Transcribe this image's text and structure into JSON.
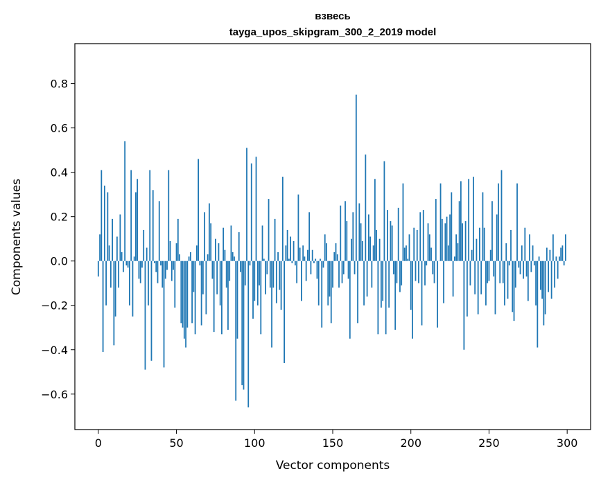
{
  "chart_data": {
    "type": "bar",
    "title": "взвесь",
    "subtitle": "tayga_upos_skipgram_300_2_2019 model",
    "xlabel": "Vector components",
    "ylabel": "Components values",
    "xlim": [
      -15,
      315
    ],
    "ylim": [
      -0.76,
      0.98
    ],
    "x_ticks": [
      0,
      50,
      100,
      150,
      200,
      250,
      300
    ],
    "y_ticks": [
      -0.6,
      -0.4,
      -0.2,
      0.0,
      0.2,
      0.4,
      0.6,
      0.8
    ],
    "y_tick_labels": [
      "−0.6",
      "−0.4",
      "−0.2",
      "0.0",
      "0.2",
      "0.4",
      "0.6",
      "0.8"
    ],
    "x_tick_labels": [
      "0",
      "50",
      "100",
      "150",
      "200",
      "250",
      "300"
    ],
    "grid": false,
    "bar_color": "#1f77b4",
    "values": [
      -0.07,
      0.12,
      0.41,
      -0.41,
      0.34,
      -0.2,
      0.31,
      0.07,
      -0.12,
      0.19,
      -0.38,
      -0.25,
      0.11,
      -0.12,
      0.21,
      0.04,
      -0.05,
      0.54,
      -0.02,
      -0.03,
      -0.2,
      0.41,
      -0.25,
      0.02,
      0.31,
      0.37,
      -0.08,
      -0.1,
      -0.03,
      0.14,
      -0.49,
      0.06,
      -0.2,
      0.41,
      -0.45,
      0.32,
      -0.01,
      -0.05,
      -0.1,
      0.27,
      -0.02,
      -0.12,
      -0.48,
      -0.08,
      -0.04,
      0.41,
      0.09,
      -0.09,
      -0.04,
      -0.21,
      0.08,
      0.19,
      0.03,
      -0.28,
      -0.3,
      -0.35,
      -0.39,
      -0.3,
      0.02,
      0.04,
      -0.28,
      -0.14,
      -0.33,
      0.07,
      0.46,
      -0.02,
      -0.29,
      -0.15,
      0.22,
      -0.24,
      0.03,
      0.26,
      0.17,
      -0.08,
      -0.32,
      0.1,
      -0.15,
      0.08,
      -0.2,
      -0.33,
      0.15,
      0.05,
      -0.12,
      -0.31,
      -0.09,
      0.16,
      0.04,
      0.02,
      -0.63,
      -0.35,
      0.13,
      -0.05,
      -0.56,
      -0.58,
      -0.11,
      0.51,
      -0.66,
      -0.02,
      0.44,
      -0.26,
      -0.18,
      0.47,
      -0.2,
      -0.11,
      -0.33,
      0.16,
      0.01,
      -0.15,
      -0.06,
      0.28,
      -0.12,
      -0.39,
      -0.12,
      0.19,
      -0.19,
      0.04,
      -0.13,
      -0.22,
      0.38,
      -0.46,
      0.07,
      0.14,
      0.01,
      0.11,
      -0.01,
      0.09,
      -0.02,
      -0.1,
      0.3,
      0.06,
      -0.18,
      0.07,
      0.02,
      -0.09,
      0.05,
      0.22,
      -0.06,
      0.05,
      -0.01,
      0.01,
      -0.08,
      -0.2,
      0.01,
      -0.3,
      -0.03,
      0.12,
      0.08,
      -0.2,
      -0.16,
      -0.28,
      -0.12,
      0.04,
      0.08,
      0.03,
      -0.12,
      0.25,
      -0.1,
      -0.06,
      0.27,
      0.18,
      -0.08,
      -0.35,
      0.1,
      0.22,
      -0.06,
      0.75,
      -0.28,
      0.26,
      0.17,
      0.09,
      -0.2,
      0.48,
      -0.16,
      0.21,
      0.11,
      -0.12,
      0.07,
      0.37,
      0.14,
      -0.33,
      0.1,
      -0.21,
      -0.18,
      0.45,
      -0.33,
      0.23,
      -0.21,
      0.18,
      0.16,
      -0.06,
      -0.31,
      -0.1,
      0.24,
      -0.14,
      -0.11,
      0.35,
      0.06,
      0.07,
      0.01,
      0.12,
      -0.22,
      -0.35,
      0.15,
      -0.09,
      0.14,
      -0.1,
      0.22,
      -0.29,
      0.23,
      -0.11,
      -0.02,
      0.17,
      0.12,
      0.06,
      -0.06,
      -0.1,
      0.28,
      -0.3,
      0.0,
      0.35,
      0.19,
      -0.19,
      0.17,
      0.2,
      0.07,
      0.21,
      0.31,
      -0.16,
      0.02,
      0.12,
      0.08,
      0.27,
      0.36,
      0.17,
      -0.4,
      0.18,
      -0.25,
      0.37,
      -0.11,
      0.05,
      0.38,
      -0.15,
      0.1,
      -0.24,
      0.15,
      -0.15,
      0.31,
      0.15,
      -0.2,
      -0.1,
      -0.09,
      0.05,
      0.27,
      -0.07,
      -0.24,
      0.21,
      0.35,
      -0.1,
      0.41,
      -0.1,
      -0.2,
      0.08,
      -0.17,
      -0.02,
      0.14,
      -0.23,
      -0.27,
      -0.12,
      0.35,
      -0.03,
      -0.06,
      0.07,
      -0.08,
      0.15,
      -0.07,
      -0.18,
      0.12,
      -0.05,
      0.07,
      -0.02,
      -0.2,
      -0.39,
      0.02,
      -0.13,
      -0.17,
      -0.29,
      -0.24,
      0.06,
      -0.14,
      0.05,
      -0.17,
      0.12,
      -0.12,
      0.02,
      -0.08,
      0.02,
      0.06,
      0.07,
      -0.02,
      0.12
    ]
  }
}
